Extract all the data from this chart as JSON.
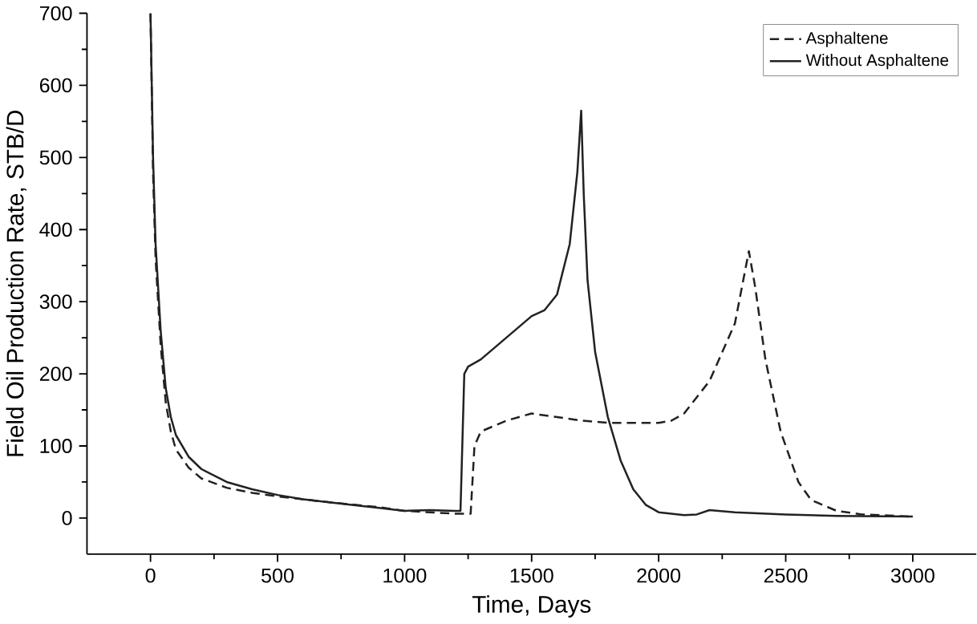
{
  "chart_data": {
    "type": "line",
    "xlabel": "Time, Days",
    "ylabel": "Field Oil Production Rate, STB/D",
    "xlim": [
      -250,
      3250
    ],
    "ylim": [
      -50,
      700
    ],
    "xticks": [
      0,
      500,
      1000,
      1500,
      2000,
      2500,
      3000
    ],
    "yticks": [
      0,
      100,
      200,
      300,
      400,
      500,
      600,
      700
    ],
    "legend": "top right",
    "grid": false,
    "marker": "none",
    "series": [
      {
        "name": "Asphaltene",
        "color": "#222222",
        "line_style": "dashed",
        "x": [
          0,
          10,
          20,
          40,
          60,
          80,
          100,
          150,
          200,
          300,
          400,
          500,
          700,
          900,
          1000,
          1100,
          1200,
          1260,
          1275,
          1300,
          1400,
          1500,
          1600,
          1700,
          1800,
          1900,
          2000,
          2050,
          2100,
          2200,
          2300,
          2355,
          2380,
          2420,
          2480,
          2550,
          2600,
          2700,
          2800,
          3000
        ],
        "values": [
          700,
          480,
          360,
          240,
          160,
          120,
          95,
          70,
          55,
          42,
          35,
          30,
          22,
          15,
          10,
          8,
          6,
          6,
          100,
          120,
          135,
          145,
          140,
          135,
          132,
          132,
          132,
          135,
          145,
          190,
          270,
          370,
          320,
          220,
          120,
          50,
          25,
          10,
          5,
          2
        ]
      },
      {
        "name": "Without Asphaltene",
        "color": "#222222",
        "line_style": "solid",
        "x": [
          0,
          10,
          20,
          40,
          60,
          80,
          100,
          150,
          200,
          300,
          400,
          500,
          600,
          700,
          800,
          900,
          1000,
          1100,
          1200,
          1220,
          1235,
          1250,
          1300,
          1400,
          1500,
          1550,
          1600,
          1650,
          1680,
          1695,
          1705,
          1720,
          1750,
          1800,
          1850,
          1900,
          1950,
          2000,
          2100,
          2150,
          2200,
          2300,
          2500,
          2700,
          3000
        ],
        "values": [
          700,
          500,
          380,
          260,
          180,
          140,
          115,
          85,
          68,
          50,
          40,
          32,
          26,
          22,
          18,
          14,
          10,
          11,
          10,
          10,
          200,
          210,
          220,
          250,
          280,
          288,
          310,
          380,
          480,
          565,
          450,
          330,
          230,
          140,
          80,
          40,
          18,
          8,
          4,
          5,
          11,
          8,
          5,
          3,
          2
        ]
      }
    ]
  }
}
